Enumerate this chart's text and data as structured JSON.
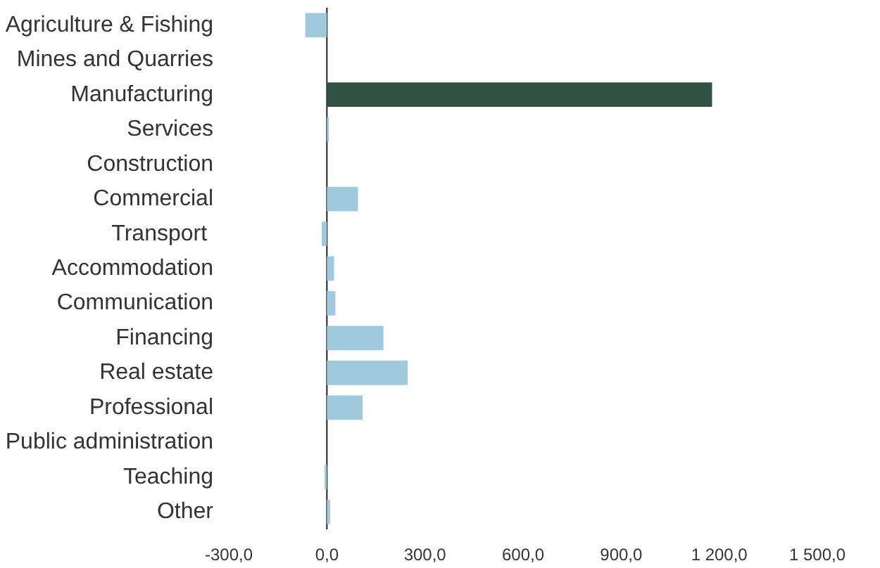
{
  "chart_data": {
    "type": "bar",
    "orientation": "horizontal",
    "categories": [
      "Agriculture & Fishing",
      "Mines and Quarries",
      "Manufacturing",
      "Services",
      "Construction",
      "Commercial",
      "Transport ",
      "Accommodation",
      "Communication",
      "Financing",
      "Real estate",
      "Professional",
      "Public administration",
      "Teaching",
      "Other"
    ],
    "values": [
      -66,
      0,
      1178,
      6,
      0,
      95,
      -16,
      22,
      26,
      173,
      247,
      109,
      0,
      -7,
      10
    ],
    "colors": [
      "#9fc9dc",
      "#9fc9dc",
      "#2f5245",
      "#9fc9dc",
      "#9fc9dc",
      "#9fc9dc",
      "#9fc9dc",
      "#9fc9dc",
      "#9fc9dc",
      "#9fc9dc",
      "#9fc9dc",
      "#9fc9dc",
      "#9fc9dc",
      "#9fc9dc",
      "#9fc9dc"
    ],
    "xlim": [
      -300,
      1500
    ],
    "xticks": [
      {
        "value": -300,
        "label": "-300,0"
      },
      {
        "value": 0,
        "label": "0,0"
      },
      {
        "value": 300,
        "label": "300,0"
      },
      {
        "value": 600,
        "label": "600,0"
      },
      {
        "value": 900,
        "label": "900,0"
      },
      {
        "value": 1200,
        "label": "1 200,0"
      },
      {
        "value": 1500,
        "label": "1 500,0"
      }
    ],
    "ref_lines": [
      {
        "axis": "x",
        "value": 0,
        "color": "#222222"
      }
    ],
    "grid": false
  }
}
